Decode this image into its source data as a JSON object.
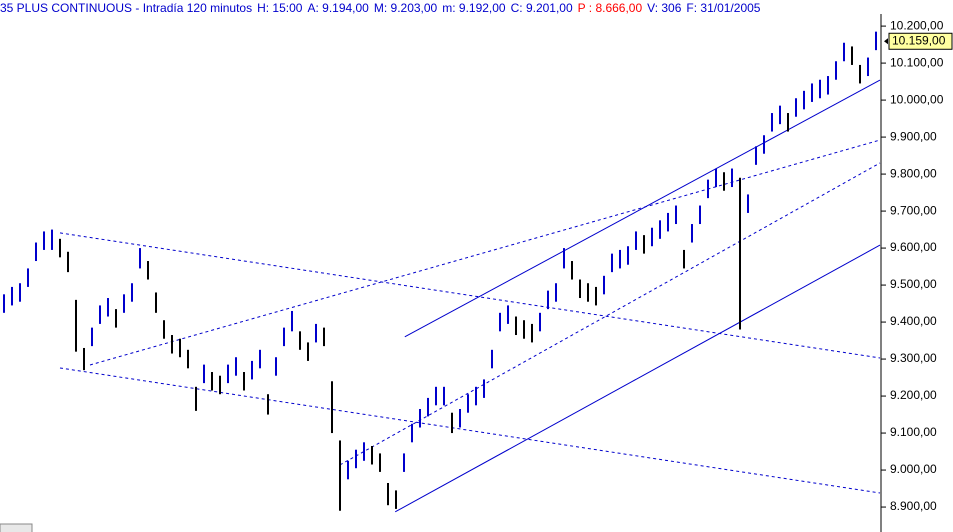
{
  "header": {
    "parts": [
      {
        "text": "35 PLUS CONTINUOUS - Intradía 120 minutos",
        "color": "#0000cc"
      },
      {
        "text": "H: 15:00",
        "color": "#0000cc"
      },
      {
        "text": "A: 9.194,00",
        "color": "#0000cc"
      },
      {
        "text": "M: 9.203,00",
        "color": "#0000cc"
      },
      {
        "text": "m: 9.192,00",
        "color": "#0000cc"
      },
      {
        "text": "C: 9.201,00",
        "color": "#0000cc"
      },
      {
        "text": "P : 8.666,00",
        "color": "#ff0000"
      },
      {
        "text": "V: 306",
        "color": "#0000cc"
      },
      {
        "text": "F: 31/01/2005",
        "color": "#0000cc"
      }
    ]
  },
  "chart_data": {
    "type": "range_bar",
    "up_color": "#0000cc",
    "down_color": "#000000",
    "line_color": "#0000cc",
    "xlim": [
      -0.5,
      109.5
    ],
    "ylim": [
      8865,
      10230
    ],
    "yticks": [
      {
        "value": 8900,
        "label": "8.900,00"
      },
      {
        "value": 9000,
        "label": "9.000,00"
      },
      {
        "value": 9100,
        "label": "9.100,00"
      },
      {
        "value": 9200,
        "label": "9.200,00"
      },
      {
        "value": 9300,
        "label": "9.300,00"
      },
      {
        "value": 9400,
        "label": "9.400,00"
      },
      {
        "value": 9500,
        "label": "9.500,00"
      },
      {
        "value": 9600,
        "label": "9.600,00"
      },
      {
        "value": 9700,
        "label": "9.700,00"
      },
      {
        "value": 9800,
        "label": "9.800,00"
      },
      {
        "value": 9900,
        "label": "9.900,00"
      },
      {
        "value": 10000,
        "label": "10.000,00"
      },
      {
        "value": 10100,
        "label": "10.100,00"
      },
      {
        "value": 10200,
        "label": "10.200,00"
      }
    ],
    "last_price": {
      "value": 10159,
      "label": "10.159,00"
    },
    "high": [
      9475,
      9495,
      9505,
      9545,
      9615,
      9645,
      9650,
      9625,
      9590,
      9460,
      9330,
      9385,
      9445,
      9465,
      9435,
      9475,
      9505,
      9600,
      9565,
      9480,
      9405,
      9365,
      9355,
      9325,
      9225,
      9285,
      9265,
      9255,
      9285,
      9305,
      9265,
      9295,
      9325,
      9205,
      9305,
      9385,
      9430,
      9375,
      9345,
      9395,
      9385,
      9240,
      9080,
      9025,
      9055,
      9075,
      9065,
      9045,
      8965,
      8945,
      9045,
      9125,
      9165,
      9195,
      9225,
      9225,
      9155,
      9165,
      9205,
      9225,
      9245,
      9325,
      9425,
      9445,
      9415,
      9405,
      9395,
      9425,
      9485,
      9505,
      9600,
      9565,
      9515,
      9505,
      9495,
      9525,
      9585,
      9595,
      9605,
      9645,
      9635,
      9655,
      9675,
      9695,
      9715,
      9595,
      9665,
      9715,
      9785,
      9815,
      9805,
      9815,
      9790,
      9745,
      9875,
      9905,
      9965,
      9985,
      9965,
      10005,
      10025,
      10045,
      10055,
      10065,
      10105,
      10155,
      10145,
      10095,
      10115,
      10185
    ],
    "low": [
      9425,
      9445,
      9455,
      9495,
      9565,
      9595,
      9595,
      9575,
      9535,
      9320,
      9270,
      9335,
      9395,
      9415,
      9385,
      9425,
      9455,
      9545,
      9515,
      9425,
      9355,
      9315,
      9305,
      9275,
      9160,
      9235,
      9215,
      9205,
      9235,
      9255,
      9215,
      9245,
      9275,
      9150,
      9255,
      9335,
      9375,
      9325,
      9295,
      9345,
      9335,
      9100,
      8890,
      8975,
      9005,
      9025,
      9015,
      8995,
      8905,
      8895,
      8995,
      9075,
      9115,
      9145,
      9175,
      9175,
      9100,
      9115,
      9155,
      9175,
      9195,
      9275,
      9375,
      9395,
      9365,
      9355,
      9345,
      9375,
      9435,
      9455,
      9545,
      9515,
      9465,
      9455,
      9445,
      9475,
      9535,
      9545,
      9555,
      9595,
      9585,
      9605,
      9625,
      9645,
      9665,
      9545,
      9615,
      9665,
      9735,
      9765,
      9755,
      9765,
      9380,
      9695,
      9825,
      9855,
      9915,
      9935,
      9915,
      9955,
      9975,
      9995,
      10005,
      10015,
      10055,
      10105,
      10095,
      10045,
      10065,
      10135
    ],
    "trendlines": [
      {
        "style": "solid",
        "x": [
          50.1,
          109.5
        ],
        "y": [
          9360,
          10054
        ]
      },
      {
        "style": "solid",
        "x": [
          48.9,
          109.5
        ],
        "y": [
          8887,
          9608
        ]
      },
      {
        "style": "dashed",
        "x": [
          7,
          109.5
        ],
        "y": [
          9641,
          9303
        ]
      },
      {
        "style": "dashed",
        "x": [
          7,
          109.5
        ],
        "y": [
          9276,
          8938
        ]
      },
      {
        "style": "dashed",
        "x": [
          10.75,
          109.5
        ],
        "y": [
          9284,
          9892
        ]
      },
      {
        "style": "dashed",
        "x": [
          42,
          109.5
        ],
        "y": [
          9014,
          9830
        ]
      }
    ]
  }
}
